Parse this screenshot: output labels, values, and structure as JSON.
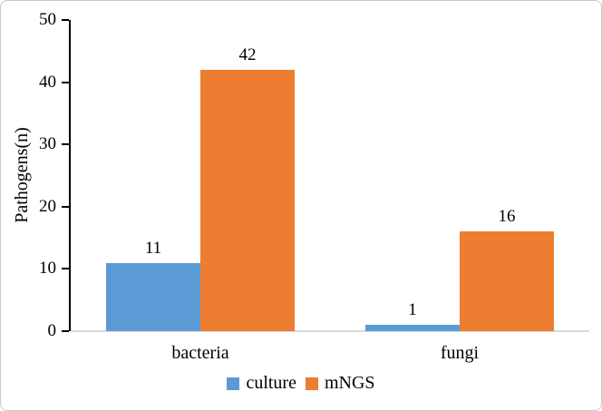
{
  "chart_data": {
    "type": "bar",
    "categories": [
      "bacteria",
      "fungi"
    ],
    "series": [
      {
        "name": "culture",
        "color": "#5B9BD5",
        "values": [
          11,
          1
        ]
      },
      {
        "name": "mNGS",
        "color": "#ED7D31",
        "values": [
          42,
          16
        ]
      }
    ],
    "title": "",
    "xlabel": "",
    "ylabel": "Pathogens(n)",
    "ylim": [
      0,
      50
    ],
    "yticks": [
      0,
      10,
      20,
      30,
      40,
      50
    ],
    "grid": false,
    "legend_position": "bottom",
    "data_labels": [
      {
        "category": "bacteria",
        "series": "culture",
        "label": "11"
      },
      {
        "category": "bacteria",
        "series": "mNGS",
        "label": "42"
      },
      {
        "category": "fungi",
        "series": "culture",
        "label": "1"
      },
      {
        "category": "fungi",
        "series": "mNGS",
        "label": "16"
      }
    ]
  },
  "colors": {
    "axis": "#000000",
    "baseline": "#d9d9d9",
    "frame_border": "#c9c9c9",
    "text": "#000000"
  }
}
